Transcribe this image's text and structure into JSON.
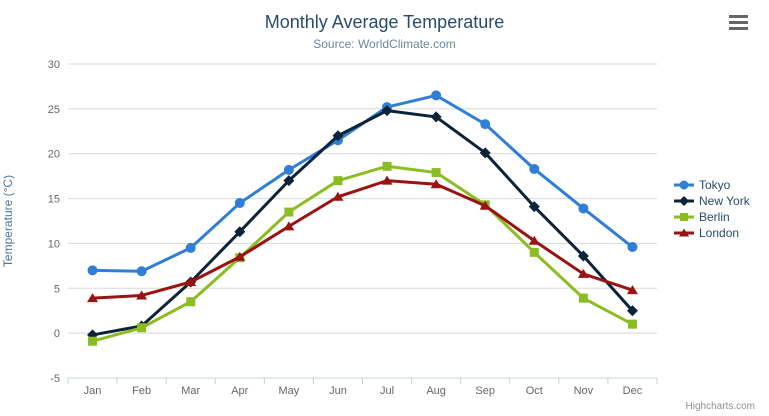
{
  "chart_data": {
    "type": "line",
    "title": "Monthly Average Temperature",
    "subtitle": "Source: WorldClimate.com",
    "credit": "Highcharts.com",
    "categories": [
      "Jan",
      "Feb",
      "Mar",
      "Apr",
      "May",
      "Jun",
      "Jul",
      "Aug",
      "Sep",
      "Oct",
      "Nov",
      "Dec"
    ],
    "xlabel": "",
    "ylabel": "Temperature (°C)",
    "ylim": [
      -5,
      30
    ],
    "ytick_step": 5,
    "yticks": [
      -5,
      0,
      5,
      10,
      15,
      20,
      25,
      30
    ],
    "grid": true,
    "legend_position": "right",
    "series": [
      {
        "name": "Tokyo",
        "marker": "circle",
        "color": "#2f7ed8",
        "values": [
          7.0,
          6.9,
          9.5,
          14.5,
          18.2,
          21.5,
          25.2,
          26.5,
          23.3,
          18.3,
          13.9,
          9.6
        ]
      },
      {
        "name": "New York",
        "marker": "diamond",
        "color": "#0d233a",
        "values": [
          -0.2,
          0.8,
          5.7,
          11.3,
          17.0,
          22.0,
          24.8,
          24.1,
          20.1,
          14.1,
          8.6,
          2.5
        ]
      },
      {
        "name": "Berlin",
        "marker": "square",
        "color": "#8bbc21",
        "values": [
          -0.9,
          0.6,
          3.5,
          8.4,
          13.5,
          17.0,
          18.6,
          17.9,
          14.3,
          9.0,
          3.9,
          1.0
        ]
      },
      {
        "name": "London",
        "marker": "triangle",
        "color": "#9a1212",
        "values": [
          3.9,
          4.2,
          5.7,
          8.5,
          11.9,
          15.2,
          17.0,
          16.6,
          14.2,
          10.3,
          6.6,
          4.8
        ]
      }
    ]
  },
  "theme": {
    "background": "#ffffff",
    "title_color": "#274b6d",
    "subtitle_color": "#6d869f",
    "axis_title_color": "#4d759e",
    "tick_label_color": "#666666",
    "grid_color": "#d8d8d8",
    "axis_line_color": "#c0d0e0",
    "legend_text_color": "#274b6d",
    "credit_color": "#909090",
    "menu_icon_color": "#666666"
  }
}
